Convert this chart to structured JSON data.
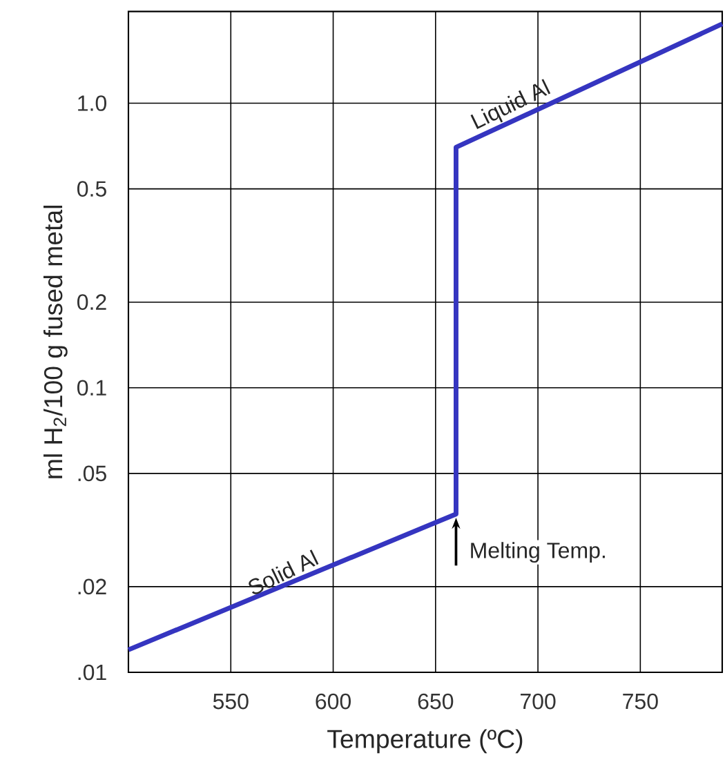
{
  "chart_data": {
    "type": "line",
    "xlabel": "Temperature (ºC)",
    "ylabel": "ml H$_{2}$/100 g fused metal",
    "x": [
      500,
      660,
      660,
      790
    ],
    "series": [
      {
        "color": "#3535c0",
        "values": [
          0.012,
          0.036,
          0.7,
          1.9
        ]
      }
    ],
    "xlim": [
      500,
      790
    ],
    "xticks": [
      550,
      600,
      650,
      700,
      750
    ],
    "ylim": [
      0.01,
      2.1
    ],
    "yticks": [
      {
        "value": 0.01,
        "label": ".01"
      },
      {
        "value": 0.02,
        "label": ".02"
      },
      {
        "value": 0.05,
        "label": ".05"
      },
      {
        "value": 0.1,
        "label": "0.1"
      },
      {
        "value": 0.2,
        "label": "0.2"
      },
      {
        "value": 0.5,
        "label": "0.5"
      },
      {
        "value": 1,
        "label": "1.0"
      }
    ],
    "log": "y",
    "grid": true,
    "annotations": [
      {
        "text": "Solid Al",
        "x": 578,
        "y": 0.0205
      },
      {
        "text": "Liquid Al",
        "x": 690,
        "y": 0.88
      },
      {
        "text": "Melting Temp.",
        "x": 660,
        "y": 0.036
      }
    ]
  }
}
